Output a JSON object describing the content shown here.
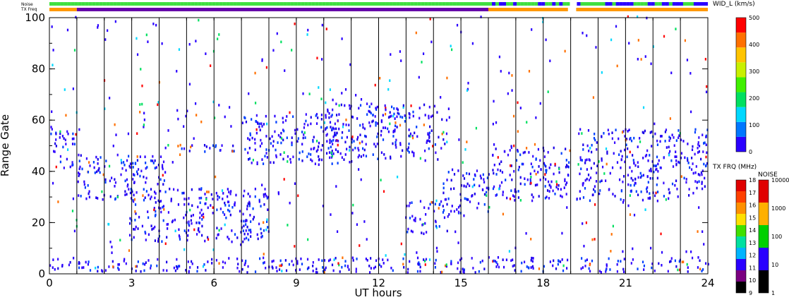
{
  "chart_data": {
    "type": "heatmap",
    "title": "",
    "xlabel": "UT hours",
    "ylabel": "Range Gate",
    "xlim": [
      0,
      24
    ],
    "ylim": [
      0,
      100
    ],
    "x_ticks": [
      "0",
      "3",
      "6",
      "9",
      "12",
      "15",
      "18",
      "21",
      "24"
    ],
    "y_ticks": [
      "0",
      "20",
      "40",
      "60",
      "80",
      "100"
    ],
    "grid": "vertical lines every UT hour",
    "data_gaps_ut": [
      [
        16.05,
        16.12
      ],
      [
        18.95,
        19.2
      ]
    ],
    "regions": [
      {
        "ut": [
          0.0,
          0.9
        ],
        "gates": [
          40,
          56
        ],
        "level": "10-100"
      },
      {
        "ut": [
          1.0,
          4.2
        ],
        "gates": [
          28,
          46
        ],
        "level": "10-100"
      },
      {
        "ut": [
          2.9,
          8.0
        ],
        "gates": [
          12,
          33
        ],
        "level": "10-100"
      },
      {
        "ut": [
          4.2,
          7.0
        ],
        "gates": [
          47,
          50
        ],
        "level": "10-100"
      },
      {
        "ut": [
          7.0,
          10.6
        ],
        "gates": [
          42,
          62
        ],
        "level": "10-100"
      },
      {
        "ut": [
          10.0,
          14.5
        ],
        "gates": [
          44,
          66
        ],
        "level": "10-100"
      },
      {
        "ut": [
          13.0,
          14.5
        ],
        "gates": [
          15,
          28
        ],
        "level": "10-100"
      },
      {
        "ut": [
          14.3,
          16.0
        ],
        "gates": [
          22,
          40
        ],
        "level": "10-100"
      },
      {
        "ut": [
          16.1,
          19.0
        ],
        "gates": [
          28,
          50
        ],
        "level": "10-100"
      },
      {
        "ut": [
          19.2,
          24.0
        ],
        "gates": [
          28,
          56
        ],
        "level": "10-100"
      },
      {
        "ut": [
          0.0,
          24.0
        ],
        "gates": [
          0,
          6
        ],
        "level": "10-100"
      }
    ],
    "panels": [
      {
        "name": "WID_L (km/s)",
        "ticks": [
          "0",
          "100",
          "200",
          "300",
          "400",
          "500"
        ],
        "colors": [
          "#2a00ff",
          "#0077ff",
          "#00d8ff",
          "#00e060",
          "#40f000",
          "#c8f000",
          "#ffc400",
          "#ff7000",
          "#ff0000"
        ]
      },
      {
        "name": "TX FRQ (MHz)",
        "ticks": [
          "9",
          "10",
          "11",
          "12",
          "13",
          "14",
          "15",
          "16",
          "17",
          "18"
        ],
        "colors": [
          "#000000",
          "#7a0080",
          "#2a00ff",
          "#00b4ff",
          "#00e0a0",
          "#40e000",
          "#ffe000",
          "#ff9000",
          "#ff4000",
          "#e00000"
        ]
      },
      {
        "name": "NOISE",
        "ticks": [
          "1",
          "10",
          "100",
          "1000",
          "10000"
        ],
        "colors": [
          "#000000",
          "#2a00ff",
          "#00d000",
          "#ffb000",
          "#e00000"
        ]
      }
    ],
    "status_bars": [
      {
        "label": "Noise",
        "color": "#40e040",
        "secondary_color": "#2a00ff"
      },
      {
        "label": "TX Freq",
        "segments": [
          {
            "ut": [
              0,
              1
            ],
            "color": "#ff9900"
          },
          {
            "ut": [
              1,
              16
            ],
            "color": "#6600aa"
          },
          {
            "ut": [
              16,
              18.9
            ],
            "color": "#ff9900"
          },
          {
            "ut": [
              19.2,
              24
            ],
            "color": "#ff9900"
          }
        ]
      }
    ]
  }
}
